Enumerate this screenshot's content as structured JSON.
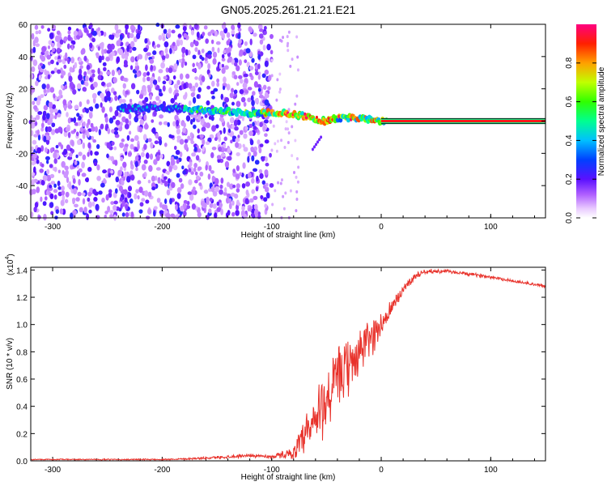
{
  "title": "GN05.2025.261.21.21.E21",
  "chart_data": [
    {
      "type": "heatmap",
      "name": "frequency-vs-height",
      "xlabel": "Height of straight line (km)",
      "ylabel": "Frequency (Hz)",
      "xlim": [
        -320,
        150
      ],
      "ylim": [
        -60,
        60
      ],
      "xticks": [
        -300,
        -200,
        -100,
        0,
        100
      ],
      "yticks": [
        -60,
        -40,
        -20,
        0,
        20,
        40,
        60
      ],
      "colorbar": {
        "label": "Normalized spectral amplitude",
        "range": [
          0,
          1
        ],
        "ticks": [
          0.0,
          0.2,
          0.4,
          0.6,
          0.8
        ],
        "tick_labels": [
          "0.0",
          "0.2",
          "0.4",
          "0.6",
          "0.8"
        ]
      },
      "ridge": {
        "description_points_x": [
          -240,
          -200,
          -170,
          -140,
          -120,
          -100,
          -90,
          -80,
          -70,
          -60,
          -50,
          -40,
          -30,
          -20,
          -10,
          0,
          150
        ],
        "description_points_y": [
          8,
          8,
          7,
          6,
          5,
          5,
          5,
          4,
          3,
          1,
          0,
          2,
          2,
          2,
          1,
          0,
          0
        ]
      },
      "noise_region_x": [
        -320,
        -100
      ],
      "zero_line_region_x": [
        0,
        150
      ]
    },
    {
      "type": "line",
      "name": "snr-vs-height",
      "xlabel": "Height of straight line (km)",
      "ylabel": "SNR (10 * v/v)",
      "scale_label": "(x10",
      "scale_exp": "4",
      "scale_close": ")",
      "xlim": [
        -320,
        150
      ],
      "ylim": [
        0,
        1.42
      ],
      "xticks": [
        -300,
        -200,
        -100,
        0,
        100
      ],
      "yticks": [
        0.0,
        0.2,
        0.4,
        0.6,
        0.8,
        1.0,
        1.2,
        1.4
      ],
      "ytick_labels": [
        "0.0",
        "0.2",
        "0.4",
        "0.6",
        "0.8",
        "1.0",
        "1.2",
        "1.4"
      ],
      "series": [
        {
          "name": "SNR",
          "color": "#e8312a",
          "x": [
            -320,
            -250,
            -200,
            -160,
            -140,
            -120,
            -100,
            -80,
            -70,
            -60,
            -50,
            -40,
            -30,
            -20,
            -10,
            0,
            10,
            20,
            30,
            40,
            60,
            80,
            100,
            120,
            150
          ],
          "values": [
            0.01,
            0.01,
            0.01,
            0.02,
            0.03,
            0.04,
            0.03,
            0.06,
            0.15,
            0.3,
            0.45,
            0.6,
            0.68,
            0.8,
            0.9,
            1.0,
            1.12,
            1.26,
            1.35,
            1.39,
            1.39,
            1.37,
            1.35,
            1.32,
            1.28
          ],
          "noise_amplitude": [
            0.005,
            0.005,
            0.006,
            0.01,
            0.015,
            0.015,
            0.015,
            0.05,
            0.2,
            0.28,
            0.3,
            0.28,
            0.25,
            0.22,
            0.18,
            0.12,
            0.08,
            0.05,
            0.03,
            0.02,
            0.015,
            0.015,
            0.015,
            0.015,
            0.015
          ]
        }
      ]
    }
  ]
}
